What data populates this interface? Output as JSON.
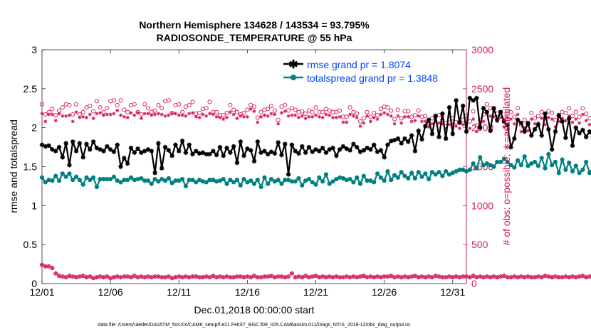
{
  "chart_data": {
    "type": "line",
    "title": [
      "Northern Hemisphere 134628 / 143534 = 93.795%",
      "RADIOSONDE_TEMPERATURE @ 55 hPa"
    ],
    "xlabel": "Dec.01,2018 00:00:00 start",
    "ylabel_left": "rmse and totalspread",
    "ylabel_right": "# of obs: o=possible; ∗=assimilated",
    "footnote": "data file: /Users/raeder/DAI/ATM_forcXX/CAM6_setup/f.e21.FHIST_BGC.f09_025.CAM6assim.011/Diags_NTrS_2018-12/obs_diag_output.nc",
    "x_range": [
      1,
      32
    ],
    "ylim_left": [
      0,
      3
    ],
    "ylim_right": [
      0,
      3000
    ],
    "x_ticks": [
      {
        "x": 1,
        "label": "12/01"
      },
      {
        "x": 6,
        "label": "12/06"
      },
      {
        "x": 11,
        "label": "12/11"
      },
      {
        "x": 16,
        "label": "12/16"
      },
      {
        "x": 21,
        "label": "12/21"
      },
      {
        "x": 26,
        "label": "12/26"
      },
      {
        "x": 31,
        "label": "12/31"
      }
    ],
    "y_ticks_left": [
      "0",
      "0.5",
      "1",
      "1.5",
      "2",
      "2.5",
      "3"
    ],
    "y_ticks_right": [
      "0",
      "500",
      "1000",
      "1500",
      "2000",
      "2500",
      "3000"
    ],
    "legend": [
      {
        "label": "rmse grand pr = 1.8074",
        "color": "#000000",
        "marker": "star"
      },
      {
        "label": "totalspread grand pr = 1.3848",
        "color": "#008080",
        "marker": "circle"
      }
    ],
    "colors": {
      "rmse": "#000000",
      "spread": "#008080",
      "obs": "#d6175d",
      "legend_text": "#0047ff"
    },
    "x_step": 0.25,
    "series": [
      {
        "name": "rmse",
        "axis": "left",
        "values": [
          1.78,
          1.76,
          1.77,
          1.72,
          1.7,
          1.75,
          1.62,
          1.8,
          1.52,
          1.82,
          1.7,
          1.8,
          1.62,
          1.79,
          1.72,
          1.82,
          1.74,
          1.72,
          1.7,
          1.76,
          1.72,
          1.69,
          1.78,
          1.5,
          1.61,
          1.54,
          1.74,
          1.68,
          1.73,
          1.68,
          1.7,
          1.72,
          1.7,
          1.42,
          1.8,
          1.48,
          1.75,
          1.71,
          1.64,
          1.78,
          1.7,
          1.83,
          1.68,
          1.78,
          1.66,
          1.7,
          1.67,
          1.68,
          1.66,
          1.66,
          1.7,
          1.65,
          1.75,
          1.64,
          1.74,
          1.68,
          1.76,
          1.55,
          1.82,
          1.64,
          1.73,
          1.71,
          1.57,
          1.82,
          1.68,
          1.7,
          1.66,
          1.69,
          1.67,
          1.81,
          1.65,
          1.79,
          1.4,
          1.78,
          1.7,
          1.67,
          1.76,
          1.68,
          1.75,
          1.69,
          1.72,
          1.7,
          1.74,
          1.68,
          1.72,
          1.74,
          1.64,
          1.72,
          1.76,
          1.73,
          1.71,
          1.79,
          1.75,
          1.69,
          1.71,
          1.74,
          1.72,
          1.78,
          1.69,
          1.71,
          1.62,
          1.78,
          1.83,
          1.84,
          1.86,
          1.8,
          1.86,
          1.82,
          1.9,
          1.7,
          1.96,
          1.85,
          2.02,
          2.1,
          1.92,
          2.15,
          1.88,
          2.18,
          1.86,
          2.26,
          1.92,
          2.35,
          2.07,
          2.28,
          1.95,
          2.38,
          2.35,
          2.38,
          2.0,
          2.25,
          2.2,
          1.96,
          2.25,
          2.1,
          2.2,
          2.08,
          2.03,
          1.75,
          1.86,
          2.1,
          2.06,
          1.95,
          2.06,
          1.9,
          1.98,
          2.04,
          1.9,
          2.18,
          1.98,
          1.72,
          1.95,
          2.16,
          2.08,
          1.87,
          2.12,
          1.77,
          2.0,
          1.93,
          1.97,
          1.88,
          1.95,
          1.88,
          1.9,
          1.85,
          1.92,
          1.8,
          1.86,
          1.73
        ]
      },
      {
        "name": "totalspread",
        "axis": "left",
        "values": [
          1.36,
          1.3,
          1.33,
          1.32,
          1.38,
          1.32,
          1.41,
          1.37,
          1.41,
          1.33,
          1.37,
          1.33,
          1.27,
          1.36,
          1.33,
          1.36,
          1.24,
          1.34,
          1.34,
          1.34,
          1.34,
          1.37,
          1.32,
          1.3,
          1.33,
          1.33,
          1.36,
          1.33,
          1.34,
          1.35,
          1.32,
          1.32,
          1.28,
          1.34,
          1.31,
          1.34,
          1.32,
          1.35,
          1.29,
          1.32,
          1.32,
          1.34,
          1.25,
          1.33,
          1.33,
          1.3,
          1.33,
          1.31,
          1.3,
          1.33,
          1.33,
          1.31,
          1.32,
          1.34,
          1.28,
          1.33,
          1.3,
          1.33,
          1.26,
          1.34,
          1.3,
          1.32,
          1.28,
          1.33,
          1.24,
          1.36,
          1.28,
          1.34,
          1.31,
          1.33,
          1.28,
          1.33,
          1.33,
          1.31,
          1.31,
          1.35,
          1.26,
          1.32,
          1.34,
          1.3,
          1.27,
          1.36,
          1.31,
          1.4,
          1.28,
          1.31,
          1.34,
          1.36,
          1.35,
          1.33,
          1.34,
          1.3,
          1.36,
          1.28,
          1.38,
          1.32,
          1.32,
          1.3,
          1.41,
          1.36,
          1.32,
          1.44,
          1.33,
          1.39,
          1.36,
          1.43,
          1.38,
          1.35,
          1.42,
          1.35,
          1.43,
          1.37,
          1.41,
          1.34,
          1.43,
          1.4,
          1.43,
          1.38,
          1.44,
          1.4,
          1.42,
          1.44,
          1.46,
          1.46,
          1.44,
          1.46,
          1.54,
          1.48,
          1.62,
          1.52,
          1.54,
          1.52,
          1.5,
          1.56,
          1.56,
          1.6,
          1.56,
          1.52,
          1.49,
          1.58,
          1.52,
          1.63,
          1.51,
          1.54,
          1.56,
          1.51,
          1.61,
          1.48,
          1.66,
          1.52,
          1.56,
          1.42,
          1.59,
          1.46,
          1.55,
          1.44,
          1.51,
          1.42,
          1.46,
          1.56,
          1.42,
          1.49,
          1.45,
          1.48,
          1.45,
          1.44,
          1.42,
          1.4,
          1.46,
          1.34
        ]
      },
      {
        "name": "obs_possible",
        "axis": "right",
        "values": [
          2300,
          2170,
          2200,
          2240,
          2160,
          2220,
          2260,
          2300,
          2290,
          2170,
          2300,
          2170,
          2200,
          2260,
          2280,
          2210,
          2340,
          2260,
          2200,
          2250,
          2340,
          2350,
          2290,
          2350,
          2230,
          2200,
          2290,
          2300,
          2200,
          2170,
          2300,
          2250,
          2200,
          2220,
          2290,
          2250,
          2340,
          2350,
          2190,
          2290,
          2300,
          2200,
          2270,
          2290,
          2330,
          2180,
          2190,
          2240,
          2250,
          2330,
          2200,
          2200,
          2160,
          2160,
          2190,
          2290,
          2230,
          2200,
          2170,
          2190,
          2230,
          2290,
          2270,
          2130,
          2200,
          2230,
          2240,
          2280,
          2220,
          2100,
          2270,
          2290,
          2220,
          2250,
          2230,
          2200,
          2210,
          2180,
          2220,
          2200,
          2260,
          2200,
          2200,
          2240,
          2220,
          2200,
          2200,
          2220,
          2140,
          2140,
          2260,
          2200,
          2180,
          2080,
          2120,
          2200,
          2140,
          2190,
          2160,
          2240,
          2270,
          2260,
          2220,
          2110,
          2230,
          2120,
          2210,
          2210,
          2140,
          2160,
          2220,
          2140,
          2150,
          2060,
          2120,
          2150,
          2160,
          2100,
          2060,
          2110,
          2120,
          2070,
          2060,
          2100,
          2150,
          2080,
          2210,
          2030,
          2100,
          2170,
          2300,
          2250,
          2240,
          2180,
          2200,
          2090,
          2210,
          2200,
          2140,
          2250,
          2030,
          2100,
          2040,
          2190,
          2120,
          2150,
          2200,
          2130,
          2210,
          2190,
          2100,
          2150,
          2200,
          2190,
          2250,
          2150,
          2200,
          2140,
          2250,
          2180,
          2120,
          2210,
          2180,
          2240,
          2230,
          2210,
          2300,
          2390,
          2320,
          2250,
          2300,
          2350
        ]
      },
      {
        "name": "obs_assimilated",
        "axis": "right",
        "values": [
          2180,
          2080,
          2170,
          2170,
          2090,
          2180,
          2150,
          2150,
          2160,
          2080,
          2200,
          2130,
          2140,
          2130,
          2170,
          2120,
          2180,
          2190,
          2160,
          2170,
          2170,
          2180,
          2220,
          2160,
          2140,
          2130,
          2190,
          2160,
          2190,
          2120,
          2180,
          2180,
          2160,
          2170,
          2180,
          2170,
          2150,
          2160,
          2180,
          2180,
          2160,
          2160,
          2150,
          2180,
          2190,
          2140,
          2130,
          2170,
          2150,
          2180,
          2170,
          2140,
          2130,
          2110,
          2130,
          2200,
          2170,
          2120,
          2150,
          2140,
          2140,
          2240,
          2210,
          2070,
          2140,
          2160,
          2150,
          2180,
          2170,
          2050,
          2190,
          2210,
          2150,
          2160,
          2160,
          2130,
          2150,
          2120,
          2140,
          2140,
          2160,
          2140,
          2130,
          2170,
          2160,
          2130,
          2130,
          2140,
          2070,
          2070,
          2170,
          2150,
          2130,
          2020,
          2060,
          2150,
          2080,
          2130,
          2110,
          2170,
          2190,
          2170,
          2150,
          2050,
          2150,
          2060,
          2140,
          2140,
          2080,
          2090,
          2150,
          2080,
          2080,
          2010,
          2050,
          2080,
          2060,
          2050,
          1990,
          2040,
          2050,
          2020,
          1990,
          2040,
          2060,
          1990,
          2110,
          1950,
          2010,
          2080,
          2200,
          2150,
          2140,
          2080,
          2130,
          2010,
          2130,
          2110,
          2050,
          2170,
          1950,
          2000,
          1960,
          2110,
          2050,
          2060,
          2120,
          2040,
          2130,
          2110,
          2010,
          2080,
          2120,
          2090,
          2150,
          2070,
          2110,
          2060,
          2170,
          2090,
          2040,
          2120,
          2100,
          2150,
          2150,
          2120,
          2210,
          2290,
          2240,
          2160,
          2200,
          2260
        ]
      },
      {
        "name": "obs_low",
        "axis": "right",
        "values": [
          240,
          220,
          220,
          200,
          130,
          100,
          90,
          80,
          100,
          90,
          80,
          90,
          100,
          80,
          90,
          70,
          80,
          90,
          80,
          90,
          70,
          80,
          90,
          80,
          90,
          90,
          80,
          100,
          80,
          90,
          80,
          90,
          80,
          90,
          90,
          80,
          80,
          90,
          70,
          80,
          90,
          80,
          90,
          80,
          90,
          90,
          80,
          80,
          90,
          80,
          100,
          80,
          90,
          80,
          90,
          80,
          80,
          90,
          90,
          80,
          90,
          80,
          100,
          80,
          80,
          90,
          90,
          100,
          80,
          90,
          90,
          80,
          90,
          130,
          80,
          90,
          80,
          100,
          80,
          90,
          100,
          80,
          90,
          80,
          90,
          80,
          90,
          80,
          80,
          90,
          80,
          90,
          80,
          90,
          100,
          80,
          90,
          80,
          90,
          80,
          90,
          90,
          100,
          80,
          90,
          80,
          90,
          80,
          90,
          100,
          80,
          90,
          80,
          90,
          80,
          100,
          90,
          80,
          80,
          90,
          80,
          90,
          80,
          90,
          90,
          80,
          100,
          80,
          90,
          80,
          90,
          80,
          90,
          80,
          90,
          100,
          80,
          80,
          90,
          80,
          90,
          80,
          90,
          80,
          80,
          90,
          80,
          100,
          90,
          80,
          90,
          80,
          80,
          90,
          80,
          90,
          80,
          90,
          100,
          80,
          90,
          80,
          90,
          80,
          80,
          120,
          80,
          100,
          90,
          80,
          100,
          10
        ]
      }
    ]
  }
}
